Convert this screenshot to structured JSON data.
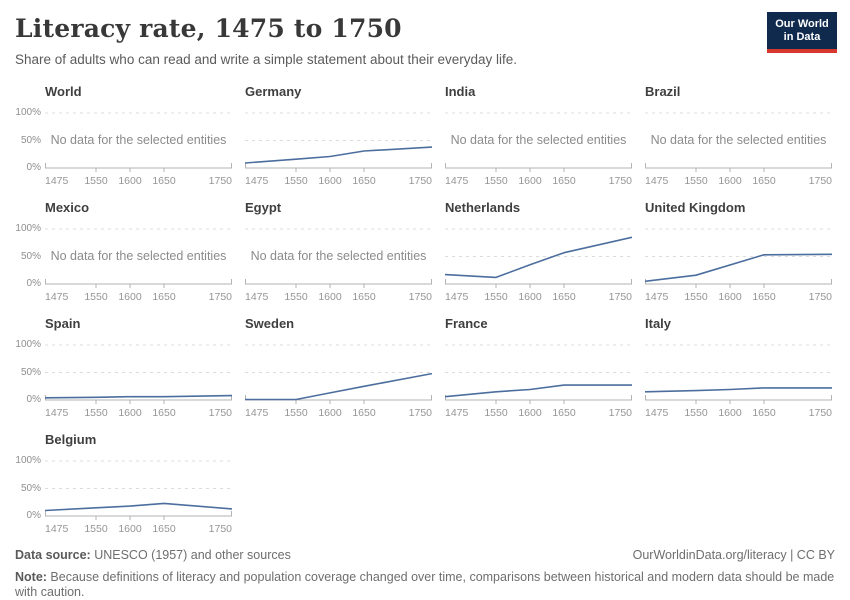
{
  "header": {
    "title": "Literacy rate, 1475 to 1750",
    "subtitle": "Share of adults who can read and write a simple statement about their everyday life.",
    "logo": {
      "line1": "Our World",
      "line2": "in Data",
      "bg_color": "#102a4e",
      "bar_color": "#d7382e"
    }
  },
  "chart_data": {
    "type": "line",
    "title": "Literacy rate, 1475 to 1750",
    "ylabel": "",
    "xlabel": "",
    "xlim": [
      1475,
      1750
    ],
    "ylim": [
      0,
      100
    ],
    "x_ticks": [
      1475,
      1550,
      1600,
      1650,
      1750
    ],
    "y_tick_labels": [
      "100%",
      "50%",
      "0%"
    ],
    "grid": "dashed horizontal at 50% and 100%",
    "legend_position": "none (facet titles)",
    "no_data_label": "No data for the selected entities",
    "line_color": "#4c6e9e",
    "facets_per_row": 4,
    "series": [
      {
        "name": "World",
        "no_data": true
      },
      {
        "name": "Germany",
        "points": [
          [
            1475,
            9
          ],
          [
            1550,
            16
          ],
          [
            1600,
            21
          ],
          [
            1650,
            31
          ],
          [
            1750,
            38
          ]
        ]
      },
      {
        "name": "India",
        "no_data": true
      },
      {
        "name": "Brazil",
        "no_data": true
      },
      {
        "name": "Mexico",
        "no_data": true
      },
      {
        "name": "Egypt",
        "no_data": true
      },
      {
        "name": "Netherlands",
        "points": [
          [
            1475,
            17
          ],
          [
            1550,
            12
          ],
          [
            1600,
            35
          ],
          [
            1650,
            57
          ],
          [
            1750,
            85
          ]
        ]
      },
      {
        "name": "United Kingdom",
        "points": [
          [
            1475,
            5
          ],
          [
            1550,
            16
          ],
          [
            1650,
            53
          ],
          [
            1750,
            54
          ]
        ]
      },
      {
        "name": "Spain",
        "points": [
          [
            1475,
            4
          ],
          [
            1550,
            5
          ],
          [
            1600,
            6
          ],
          [
            1650,
            6
          ],
          [
            1750,
            8
          ]
        ]
      },
      {
        "name": "Sweden",
        "points": [
          [
            1475,
            1
          ],
          [
            1550,
            1
          ],
          [
            1600,
            13
          ],
          [
            1650,
            25
          ],
          [
            1750,
            48
          ]
        ]
      },
      {
        "name": "France",
        "points": [
          [
            1475,
            6
          ],
          [
            1550,
            15
          ],
          [
            1600,
            19
          ],
          [
            1650,
            27
          ],
          [
            1750,
            27
          ]
        ]
      },
      {
        "name": "Italy",
        "points": [
          [
            1475,
            15
          ],
          [
            1550,
            17
          ],
          [
            1600,
            19
          ],
          [
            1650,
            22
          ],
          [
            1750,
            22
          ]
        ]
      },
      {
        "name": "Belgium",
        "points": [
          [
            1475,
            10
          ],
          [
            1550,
            15
          ],
          [
            1600,
            18
          ],
          [
            1650,
            23
          ],
          [
            1750,
            13
          ]
        ]
      }
    ]
  },
  "footer": {
    "datasource_label": "Data source:",
    "datasource_text": " UNESCO (1957) and other sources",
    "attribution": "OurWorldinData.org/literacy | CC BY",
    "note_label": "Note:",
    "note_text": " Because definitions of literacy and population coverage changed over time, comparisons between historical and modern data should be made with caution."
  }
}
